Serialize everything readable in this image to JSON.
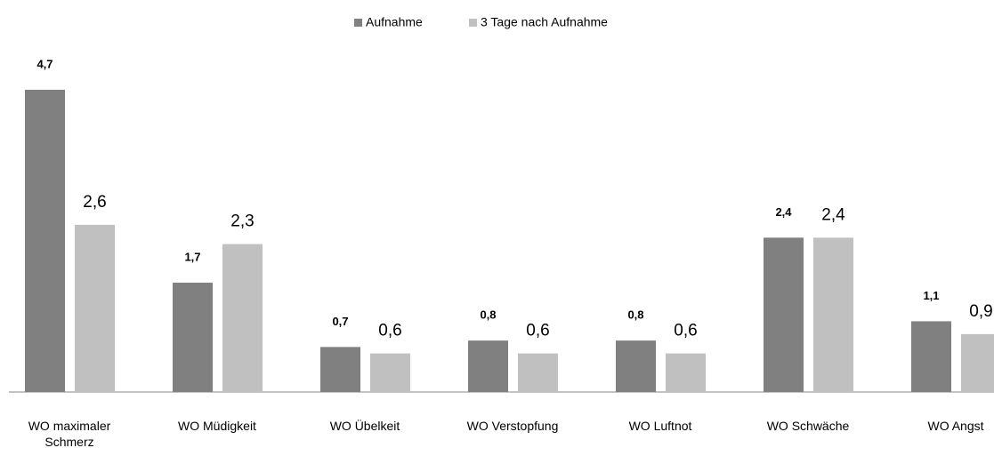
{
  "chart_data": {
    "type": "bar",
    "categories": [
      "WO maximaler Schmerz",
      "WO Müdigkeit",
      "WO Übelkeit",
      "WO Verstopfung",
      "WO Luftnot",
      "WO Schwäche",
      "WO Angst"
    ],
    "series": [
      {
        "name": "Aufnahme",
        "color": "#808080",
        "values": [
          4.7,
          1.7,
          0.7,
          0.8,
          0.8,
          2.4,
          1.1
        ],
        "value_labels": [
          "4,7",
          "1,7",
          "0,7",
          "0,8",
          "0,8",
          "2,4",
          "1,1"
        ]
      },
      {
        "name": "3 Tage nach Aufnahme",
        "color": "#c0c0c0",
        "values": [
          2.6,
          2.3,
          0.6,
          0.6,
          0.6,
          2.4,
          0.9
        ],
        "value_labels": [
          "2,6",
          "2,3",
          "0,6",
          "0,6",
          "0,6",
          "2,4",
          "0,9"
        ]
      }
    ],
    "ylim": [
      0,
      4.7
    ],
    "legend": "top"
  }
}
